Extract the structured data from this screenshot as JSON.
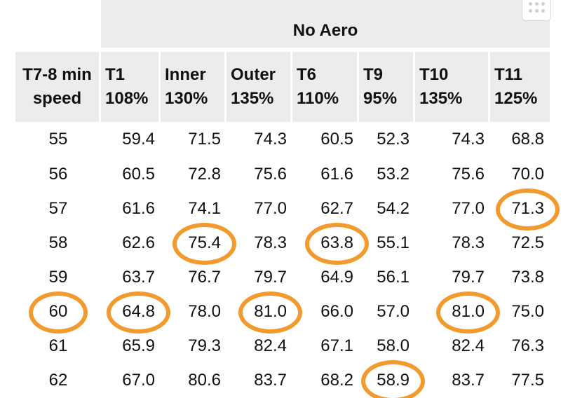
{
  "table": {
    "group_header": "No Aero",
    "columns": [
      {
        "line1": "T7-8 min",
        "line2": "speed"
      },
      {
        "line1": "T1",
        "line2": "108%"
      },
      {
        "line1": "Inner",
        "line2": "130%"
      },
      {
        "line1": "Outer",
        "line2": "135%"
      },
      {
        "line1": "T6",
        "line2": "110%"
      },
      {
        "line1": "T9",
        "line2": "95%"
      },
      {
        "line1": "T10",
        "line2": "135%"
      },
      {
        "line1": "T11",
        "line2": "125%"
      }
    ],
    "rows": [
      [
        "55",
        "59.4",
        "71.5",
        "74.3",
        "60.5",
        "52.3",
        "74.3",
        "68.8"
      ],
      [
        "56",
        "60.5",
        "72.8",
        "75.6",
        "61.6",
        "53.2",
        "75.6",
        "70.0"
      ],
      [
        "57",
        "61.6",
        "74.1",
        "77.0",
        "62.7",
        "54.2",
        "77.0",
        "71.3"
      ],
      [
        "58",
        "62.6",
        "75.4",
        "78.3",
        "63.8",
        "55.1",
        "78.3",
        "72.5"
      ],
      [
        "59",
        "63.7",
        "76.7",
        "79.7",
        "64.9",
        "56.1",
        "79.7",
        "73.8"
      ],
      [
        "60",
        "64.8",
        "78.0",
        "81.0",
        "66.0",
        "57.0",
        "81.0",
        "75.0"
      ],
      [
        "61",
        "65.9",
        "79.3",
        "82.4",
        "67.1",
        "58.0",
        "82.4",
        "76.3"
      ],
      [
        "62",
        "67.0",
        "80.6",
        "83.7",
        "68.2",
        "58.9",
        "83.7",
        "77.5"
      ]
    ]
  },
  "highlights": [
    {
      "row": 5,
      "col": 0
    },
    {
      "row": 5,
      "col": 1
    },
    {
      "row": 3,
      "col": 2
    },
    {
      "row": 5,
      "col": 3
    },
    {
      "row": 3,
      "col": 4
    },
    {
      "row": 7,
      "col": 5
    },
    {
      "row": 5,
      "col": 6
    },
    {
      "row": 2,
      "col": 7
    }
  ],
  "colors": {
    "highlight": "#f39a2f",
    "header_bg": "#ececec"
  },
  "icons": {
    "corner_handle": "drag-dots-icon"
  }
}
